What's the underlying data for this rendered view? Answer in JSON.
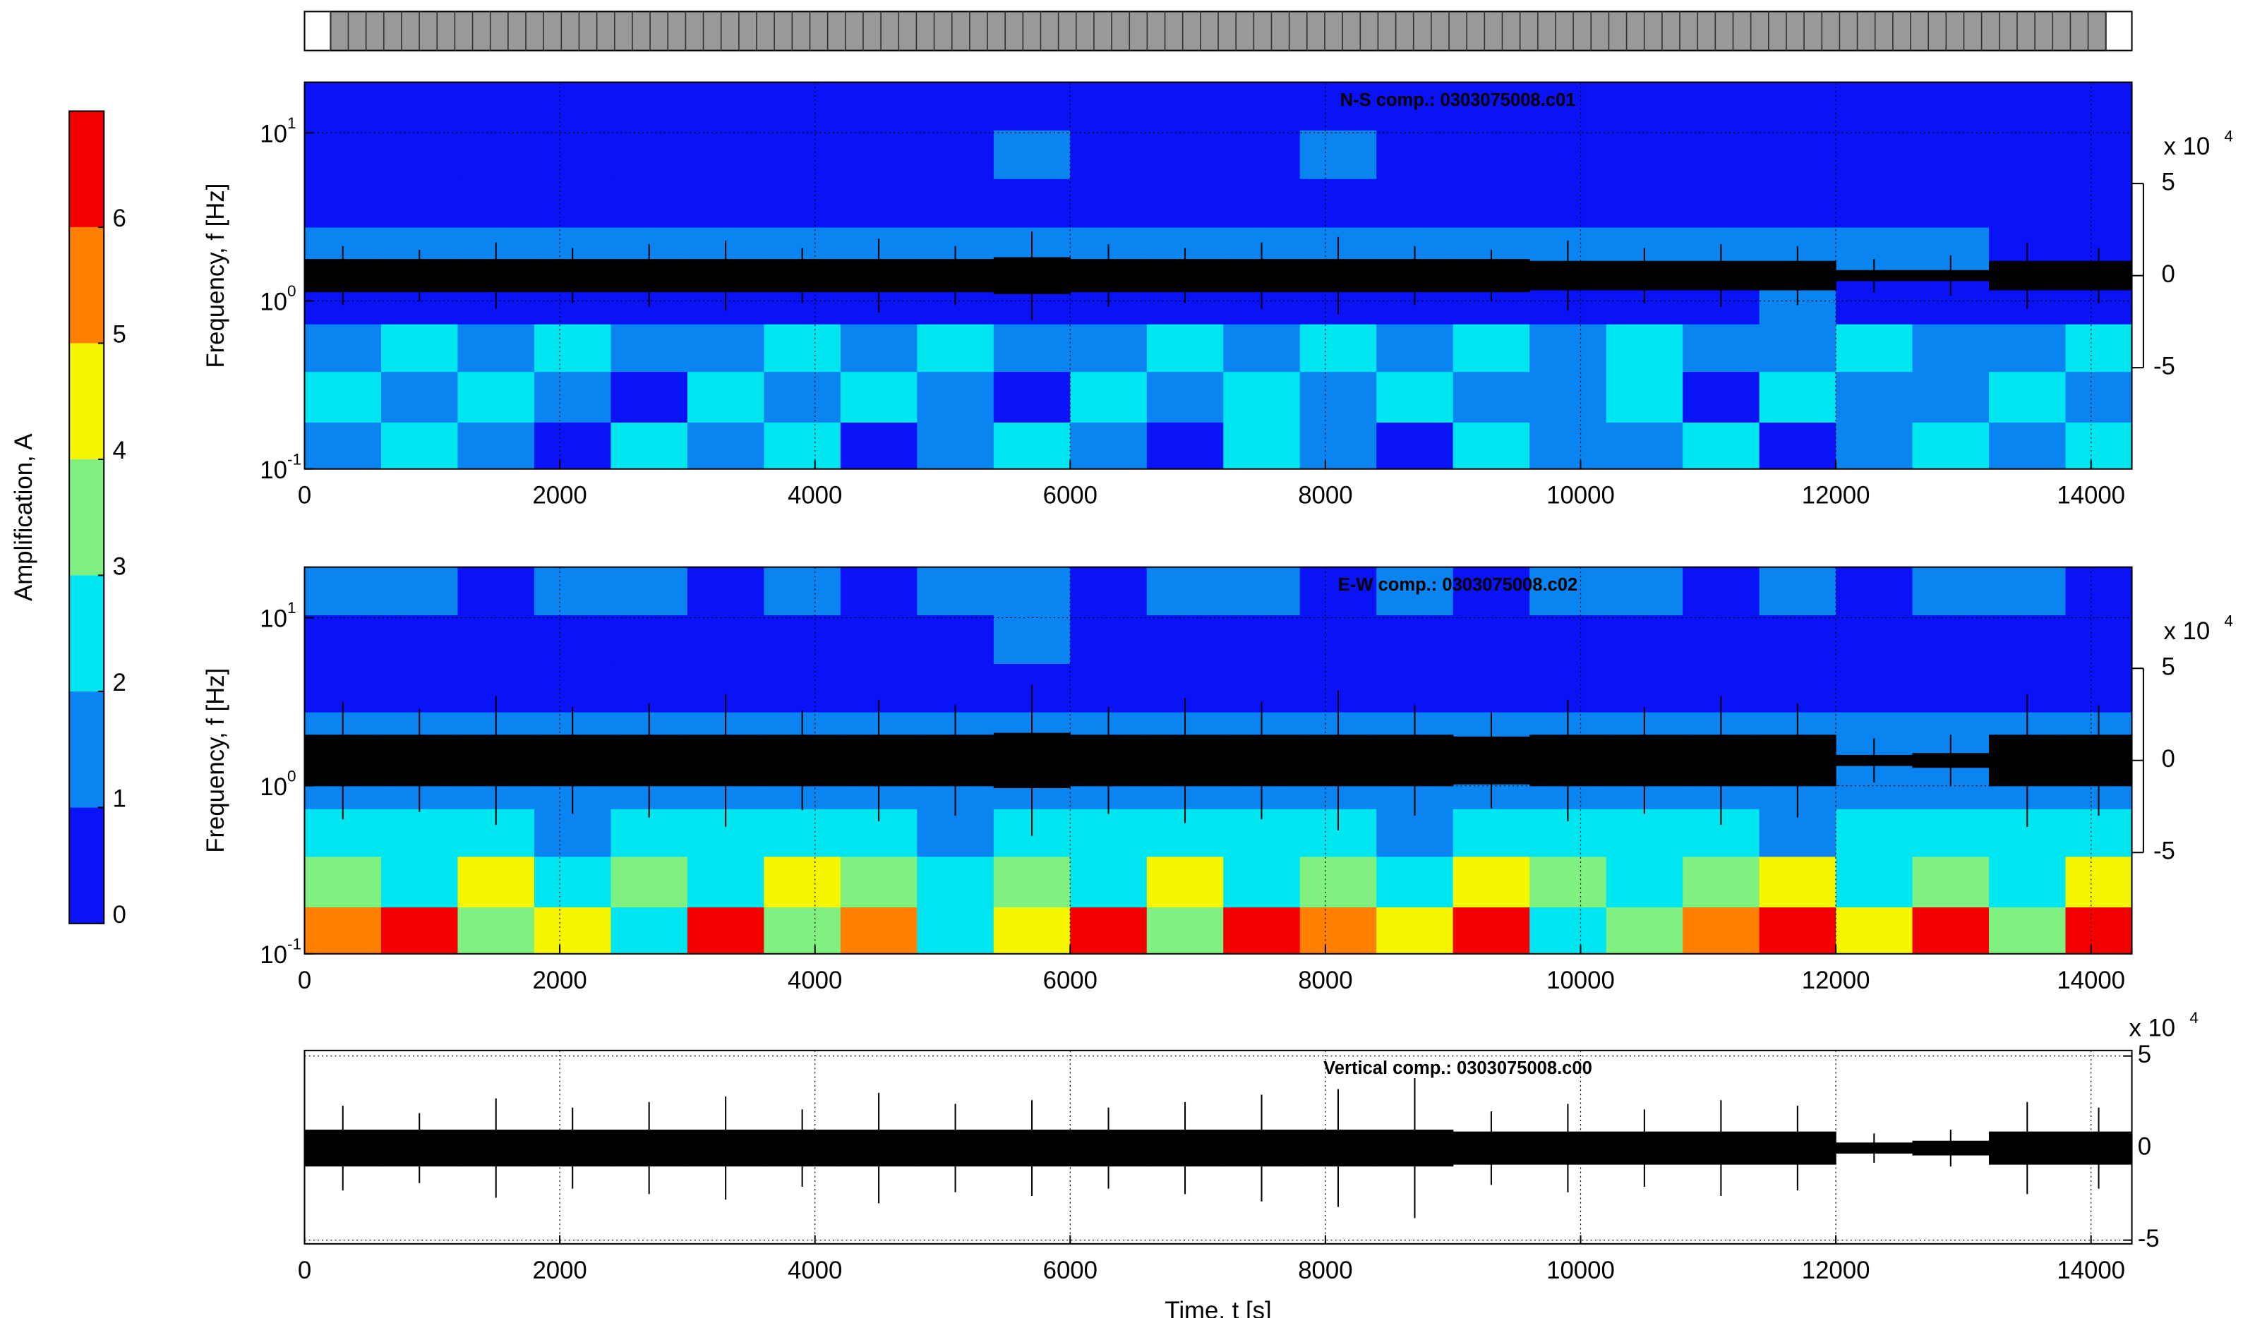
{
  "colorbar": {
    "label": "Amplification, A",
    "lim": [
      0,
      7
    ],
    "ticks": [
      0,
      1,
      2,
      3,
      4,
      5,
      6
    ],
    "colors": [
      "#0a12f6",
      "#0a84f0",
      "#00e6f0",
      "#80f080",
      "#f6f600",
      "#ff8000",
      "#f40000"
    ]
  },
  "chart_data": [
    {
      "type": "spectrogram",
      "title": "N-S comp.: 0303075008.c01",
      "ylabel": "Frequency, f [Hz]",
      "xlim": [
        0,
        14320
      ],
      "xticks": [
        0,
        2000,
        4000,
        6000,
        8000,
        10000,
        12000,
        14000
      ],
      "ylim": [
        0.1,
        20
      ],
      "log_y": true,
      "yticks": [
        {
          "value": 0.1,
          "label": "10",
          "exponent": "-1"
        },
        {
          "value": 1,
          "label": "10",
          "exponent": "0"
        },
        {
          "value": 10,
          "label": "10",
          "exponent": "1"
        }
      ],
      "y2lim": [
        -10.5,
        10.5
      ],
      "y2ticks": [
        -5,
        0,
        5
      ],
      "y2_multiplier": {
        "label": "x 10",
        "exponent": "4"
      },
      "grid": true,
      "x_edges": [
        0,
        600,
        1200,
        1800,
        2400,
        3000,
        3600,
        4200,
        4800,
        5400,
        6000,
        6600,
        7200,
        7800,
        8400,
        9000,
        9600,
        10200,
        10800,
        11400,
        12000,
        12600,
        13200,
        13800,
        14320
      ],
      "y_edges": [
        0.1,
        0.19,
        0.38,
        0.73,
        1.42,
        2.75,
        5.34,
        10.4,
        20
      ],
      "values": [
        [
          1.8,
          2.2,
          1.5,
          0.8,
          2.4,
          1.6,
          2.1,
          0.7,
          1.9,
          2.3,
          1.4,
          0.9,
          2.2,
          1.7,
          0.6,
          2.5,
          1.8,
          1.3,
          2.1,
          0.8,
          1.6,
          2.4,
          1.2,
          2.8
        ],
        [
          2.1,
          1.4,
          2.3,
          1.7,
          0.9,
          2.2,
          1.5,
          2.4,
          1.1,
          0.8,
          2.1,
          1.6,
          2.3,
          1.2,
          2.2,
          1.9,
          1.4,
          2.3,
          0.9,
          2.1,
          1.7,
          1.3,
          2.2,
          1.5
        ],
        [
          1.6,
          2.3,
          1.2,
          2.1,
          1.8,
          1.4,
          2.2,
          1.3,
          2.4,
          1.7,
          1.5,
          2.2,
          1.1,
          2.3,
          1.6,
          2.1,
          1.3,
          2.4,
          1.5,
          1.2,
          2.2,
          1.6,
          1.4,
          2.1
        ],
        [
          0.8,
          0.9,
          0.7,
          0.8,
          0.9,
          0.8,
          0.7,
          0.9,
          0.8,
          0.9,
          0.8,
          0.7,
          0.9,
          0.8,
          0.7,
          0.9,
          0.8,
          0.9,
          0.8,
          1.2,
          0.8,
          0.9,
          0.8,
          0.9
        ],
        [
          1.2,
          1.3,
          1.2,
          1.3,
          1.2,
          1.3,
          1.2,
          1.3,
          1.2,
          1.3,
          1.2,
          1.3,
          1.2,
          1.3,
          1.2,
          1.3,
          1.2,
          1.3,
          1.2,
          1.1,
          1.3,
          1.2,
          0.8,
          0.7
        ],
        [
          0.5,
          0.5,
          0.5,
          0.5,
          0.5,
          0.5,
          0.5,
          0.5,
          0.5,
          0.5,
          0.5,
          0.5,
          0.5,
          0.5,
          0.5,
          0.5,
          0.5,
          0.5,
          0.5,
          0.5,
          0.5,
          0.5,
          0.5,
          0.5
        ],
        [
          0.4,
          0.4,
          0.4,
          0.4,
          0.4,
          0.4,
          0.4,
          0.4,
          0.4,
          1.2,
          0.4,
          0.4,
          0.4,
          1.1,
          0.4,
          0.4,
          0.4,
          0.4,
          0.4,
          0.4,
          0.4,
          0.4,
          0.4,
          0.4
        ],
        [
          0.3,
          0.3,
          0.3,
          0.3,
          0.3,
          0.3,
          0.3,
          0.3,
          0.3,
          0.3,
          0.3,
          0.3,
          0.3,
          0.3,
          0.3,
          0.3,
          0.3,
          0.3,
          0.3,
          0.3,
          0.3,
          0.3,
          0.3,
          0.3
        ]
      ],
      "trace": {
        "envelope": [
          0.9,
          0.9,
          0.9,
          0.9,
          0.9,
          0.9,
          0.9,
          0.9,
          0.9,
          1.0,
          0.9,
          0.9,
          0.9,
          0.9,
          0.9,
          0.9,
          0.8,
          0.8,
          0.8,
          0.8,
          0.3,
          0.3,
          0.8,
          0.8
        ],
        "peaks": [
          1.6,
          1.4,
          1.8,
          1.5,
          1.7,
          1.9,
          1.5,
          2.0,
          1.6,
          2.4,
          1.7,
          1.5,
          1.8,
          2.1,
          1.6,
          1.4,
          1.9,
          1.5,
          1.7,
          1.6,
          0.9,
          1.1,
          1.8,
          1.5
        ]
      }
    },
    {
      "type": "spectrogram",
      "title": "E-W comp.: 0303075008.c02",
      "ylabel": "Frequency, f [Hz]",
      "xlim": [
        0,
        14320
      ],
      "xticks": [
        0,
        2000,
        4000,
        6000,
        8000,
        10000,
        12000,
        14000
      ],
      "ylim": [
        0.1,
        20
      ],
      "log_y": true,
      "yticks": [
        {
          "value": 0.1,
          "label": "10",
          "exponent": "-1"
        },
        {
          "value": 1,
          "label": "10",
          "exponent": "0"
        },
        {
          "value": 10,
          "label": "10",
          "exponent": "1"
        }
      ],
      "y2lim": [
        -10.5,
        10.5
      ],
      "y2ticks": [
        -5,
        0,
        5
      ],
      "y2_multiplier": {
        "label": "x 10",
        "exponent": "4"
      },
      "grid": true,
      "x_edges": [
        0,
        600,
        1200,
        1800,
        2400,
        3000,
        3600,
        4200,
        4800,
        5400,
        6000,
        6600,
        7200,
        7800,
        8400,
        9000,
        9600,
        10200,
        10800,
        11400,
        12000,
        12600,
        13200,
        13800,
        14320
      ],
      "y_edges": [
        0.1,
        0.19,
        0.38,
        0.73,
        1.42,
        2.75,
        5.34,
        10.4,
        20
      ],
      "values": [
        [
          5.2,
          6.3,
          3.4,
          4.6,
          2.8,
          6.1,
          3.9,
          5.4,
          2.5,
          4.8,
          6.2,
          3.1,
          6.5,
          5.7,
          4.2,
          6.4,
          2.6,
          3.8,
          5.9,
          6.3,
          4.7,
          6.1,
          3.5,
          6.2
        ],
        [
          3.2,
          2.6,
          4.1,
          2.3,
          3.5,
          2.4,
          4.2,
          3.1,
          2.2,
          3.6,
          2.8,
          4.3,
          2.5,
          3.3,
          2.7,
          4.4,
          3.6,
          2.3,
          3.1,
          4.2,
          2.6,
          3.4,
          2.5,
          4.1
        ],
        [
          2.3,
          2.1,
          2.5,
          1.8,
          2.4,
          2.2,
          2.1,
          2.6,
          1.9,
          2.3,
          2.4,
          2.0,
          2.2,
          2.5,
          1.8,
          2.3,
          2.1,
          2.4,
          2.2,
          1.9,
          2.3,
          2.1,
          2.4,
          2.2
        ],
        [
          1.4,
          1.5,
          1.3,
          1.5,
          1.4,
          1.3,
          1.5,
          1.4,
          1.3,
          1.5,
          1.4,
          1.3,
          1.5,
          1.4,
          1.5,
          1.3,
          1.4,
          1.5,
          1.3,
          1.4,
          1.5,
          1.3,
          1.4,
          1.5
        ],
        [
          1.2,
          1.1,
          1.2,
          1.2,
          1.1,
          1.2,
          1.2,
          1.1,
          1.2,
          1.2,
          1.1,
          1.2,
          1.2,
          1.1,
          1.2,
          1.2,
          1.1,
          1.2,
          1.2,
          1.1,
          1.2,
          1.2,
          1.1,
          1.2
        ],
        [
          0.6,
          0.6,
          0.6,
          0.6,
          0.6,
          0.6,
          0.6,
          0.6,
          0.6,
          0.6,
          0.6,
          0.6,
          0.6,
          0.6,
          0.6,
          0.6,
          0.6,
          0.6,
          0.6,
          0.6,
          0.6,
          0.6,
          0.6,
          0.6
        ],
        [
          0.5,
          0.5,
          0.5,
          0.5,
          0.5,
          0.5,
          0.5,
          0.5,
          0.5,
          1.1,
          0.5,
          0.5,
          0.5,
          0.5,
          0.5,
          0.5,
          0.5,
          0.5,
          0.5,
          0.5,
          0.5,
          0.5,
          0.5,
          0.5
        ],
        [
          1.3,
          1.2,
          0.6,
          1.3,
          1.2,
          0.7,
          1.3,
          0.6,
          1.2,
          1.3,
          0.7,
          1.2,
          1.3,
          0.6,
          1.2,
          0.7,
          1.3,
          1.2,
          0.6,
          1.3,
          0.7,
          1.2,
          1.3,
          0.6
        ]
      ],
      "trace": {
        "envelope": [
          1.4,
          1.4,
          1.4,
          1.4,
          1.4,
          1.4,
          1.4,
          1.4,
          1.4,
          1.5,
          1.4,
          1.4,
          1.4,
          1.4,
          1.4,
          1.3,
          1.4,
          1.4,
          1.4,
          1.4,
          0.3,
          0.4,
          1.4,
          1.4
        ],
        "peaks": [
          3.2,
          2.8,
          3.5,
          2.9,
          3.1,
          3.6,
          2.7,
          3.3,
          3.0,
          4.1,
          2.9,
          3.4,
          3.2,
          3.8,
          3.0,
          2.6,
          3.3,
          2.9,
          3.5,
          3.1,
          1.2,
          1.4,
          3.6,
          3.0
        ]
      }
    },
    {
      "type": "waveform",
      "title": "Vertical comp.: 0303075008.c00",
      "xlabel": "Time, t [s]",
      "xlim": [
        0,
        14320
      ],
      "xticks": [
        0,
        2000,
        4000,
        6000,
        8000,
        10000,
        12000,
        14000
      ],
      "ylim": [
        -5.2,
        5.3
      ],
      "yticks": [
        -5,
        0,
        5
      ],
      "y_multiplier": {
        "label": "x 10",
        "exponent": "4"
      },
      "grid": true,
      "x_edges": [
        0,
        600,
        1200,
        1800,
        2400,
        3000,
        3600,
        4200,
        4800,
        5400,
        6000,
        6600,
        7200,
        7800,
        8400,
        9000,
        9600,
        10200,
        10800,
        11400,
        12000,
        12600,
        13200,
        13800,
        14320
      ],
      "trace": {
        "envelope": [
          1.0,
          1.0,
          1.0,
          1.0,
          1.0,
          1.0,
          1.0,
          1.0,
          1.0,
          1.0,
          1.0,
          1.0,
          1.0,
          1.0,
          1.0,
          0.9,
          0.9,
          0.9,
          0.9,
          0.9,
          0.3,
          0.4,
          0.9,
          0.9
        ],
        "peaks": [
          2.3,
          1.9,
          2.7,
          2.2,
          2.5,
          2.8,
          2.1,
          3.0,
          2.4,
          2.6,
          2.2,
          2.5,
          2.9,
          3.2,
          3.8,
          2.0,
          2.4,
          2.1,
          2.6,
          2.3,
          0.8,
          1.0,
          2.5,
          2.2
        ]
      }
    }
  ]
}
